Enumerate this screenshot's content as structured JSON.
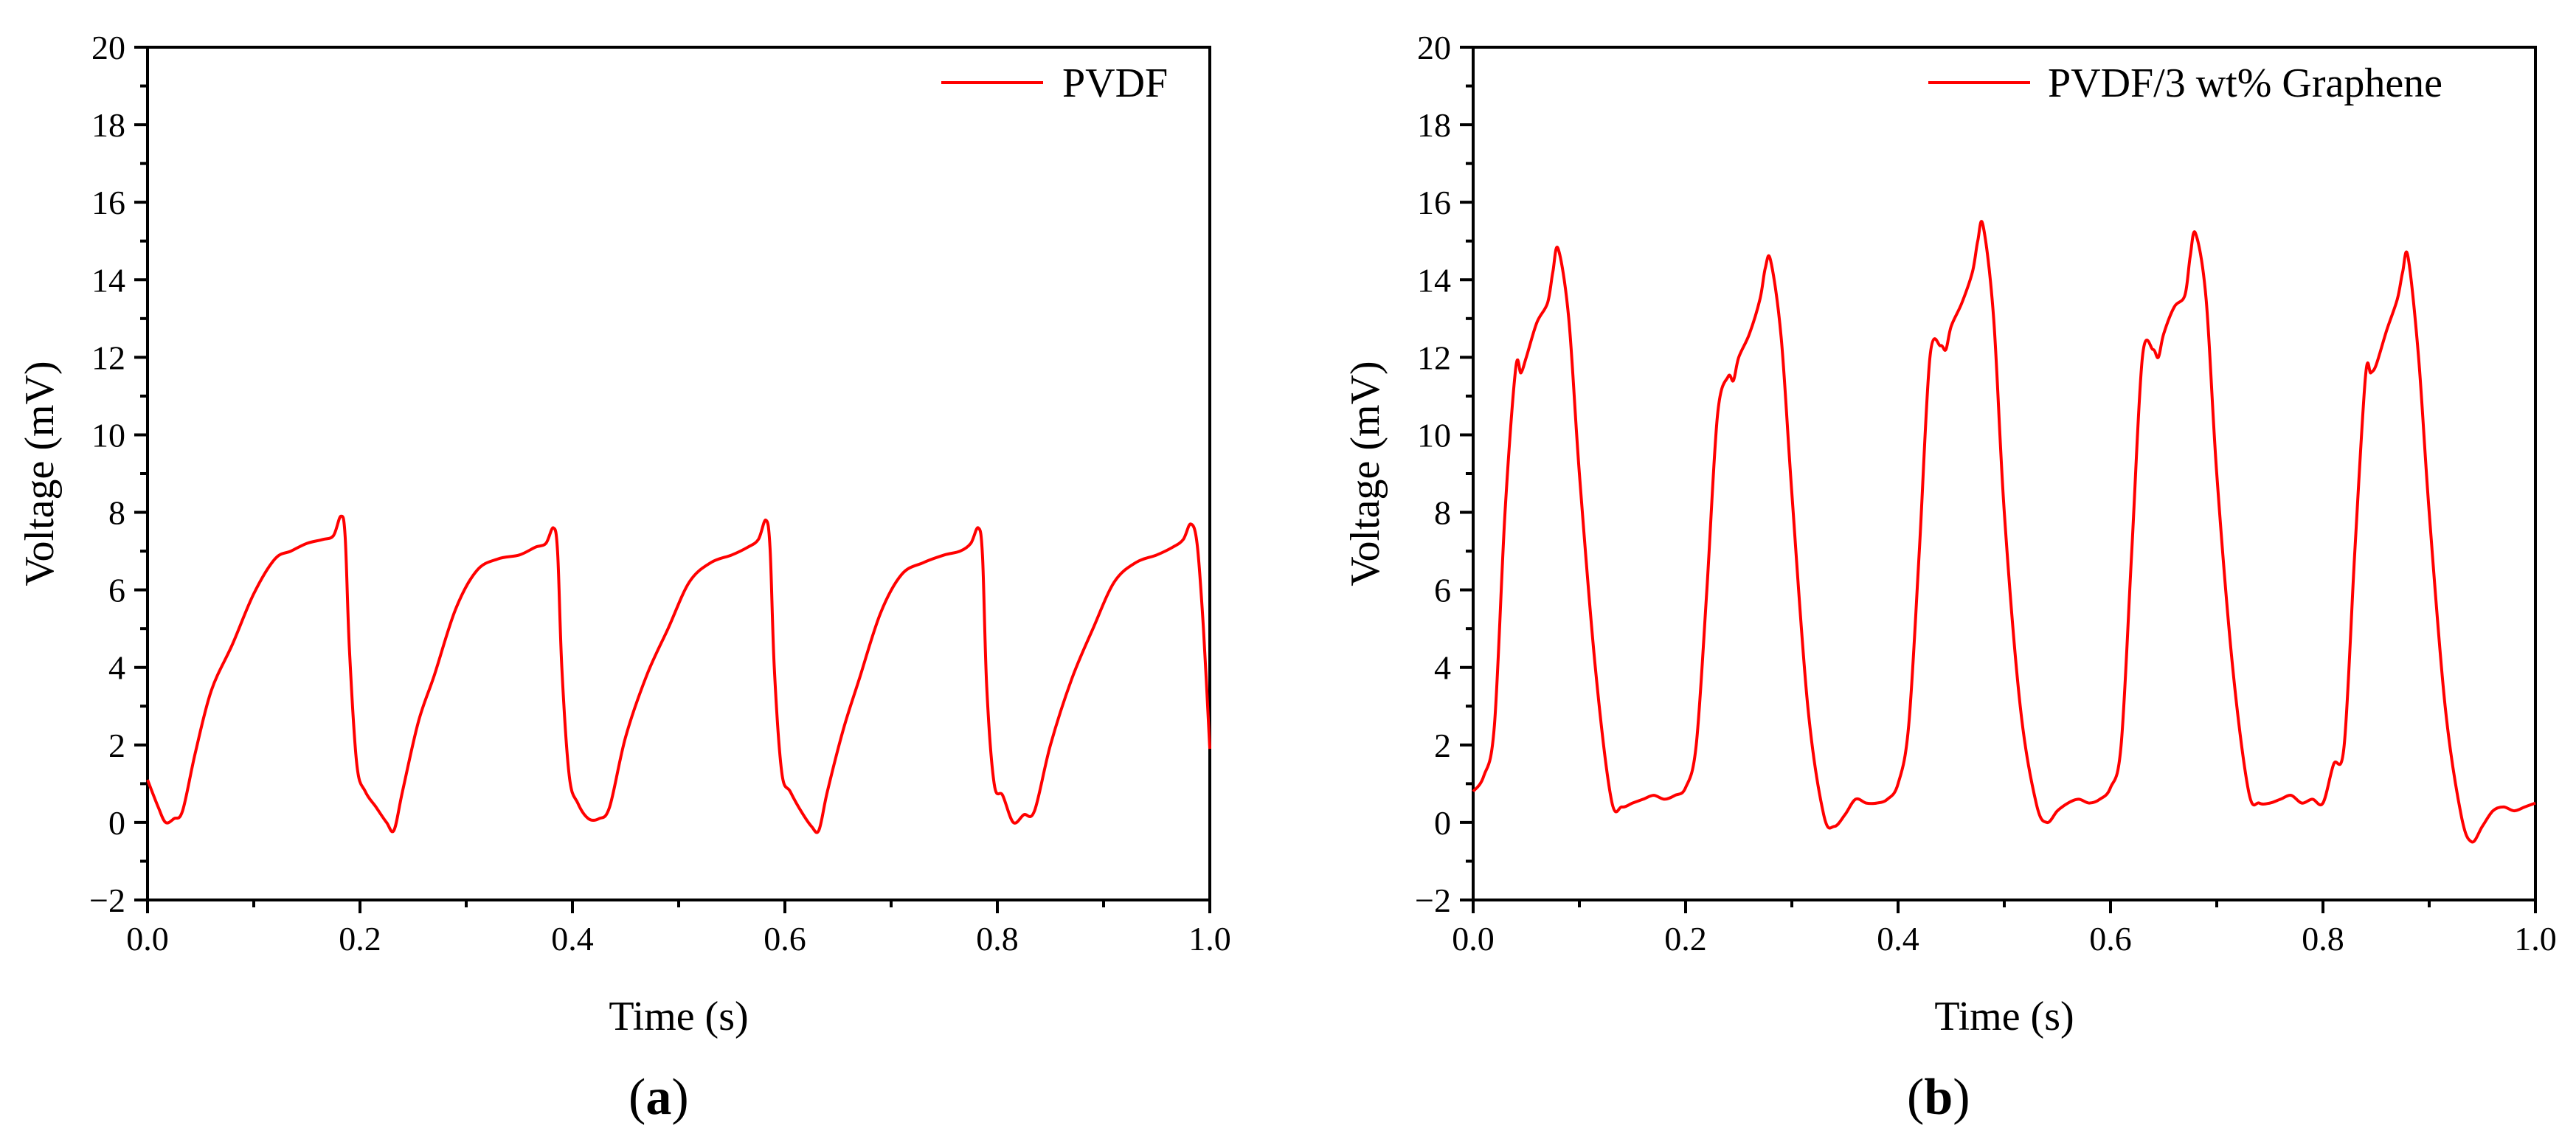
{
  "colors": {
    "series": "#ff0000",
    "axis": "#000000",
    "background": "#ffffff"
  },
  "chart_data": [
    {
      "type": "line",
      "panel_label": "a",
      "legend": "PVDF",
      "legend_position": "top-right",
      "xlabel": "Time (s)",
      "ylabel": "Voltage (mV)",
      "xlim": [
        0,
        1
      ],
      "ylim": [
        -2,
        20
      ],
      "xticks": [
        "0.0",
        "0.2",
        "0.4",
        "0.6",
        "0.8",
        "1.0"
      ],
      "yticks": [
        "−2",
        "0",
        "2",
        "4",
        "6",
        "8",
        "10",
        "12",
        "14",
        "16",
        "18",
        "20"
      ],
      "grid": false,
      "series": [
        {
          "name": "PVDF",
          "x": [
            0.0,
            0.01,
            0.017,
            0.025,
            0.033,
            0.045,
            0.06,
            0.08,
            0.1,
            0.12,
            0.135,
            0.15,
            0.165,
            0.175,
            0.182,
            0.186,
            0.19,
            0.197,
            0.205,
            0.215,
            0.225,
            0.232,
            0.24,
            0.255,
            0.27,
            0.29,
            0.31,
            0.33,
            0.35,
            0.365,
            0.375,
            0.382,
            0.386,
            0.39,
            0.397,
            0.405,
            0.415,
            0.425,
            0.435,
            0.45,
            0.47,
            0.49,
            0.51,
            0.53,
            0.55,
            0.565,
            0.575,
            0.582,
            0.586,
            0.59,
            0.597,
            0.605,
            0.615,
            0.625,
            0.632,
            0.64,
            0.655,
            0.67,
            0.69,
            0.71,
            0.73,
            0.75,
            0.765,
            0.775,
            0.782,
            0.786,
            0.79,
            0.797,
            0.805,
            0.815,
            0.825,
            0.835,
            0.85,
            0.87,
            0.89,
            0.91,
            0.93,
            0.95,
            0.965,
            0.975,
            0.982,
            0.988,
            0.994,
            1.0
          ],
          "values": [
            1.1,
            0.4,
            0.0,
            0.1,
            0.3,
            1.8,
            3.4,
            4.6,
            5.9,
            6.8,
            7.0,
            7.2,
            7.3,
            7.4,
            7.9,
            7.4,
            4.5,
            1.5,
            0.8,
            0.4,
            0.0,
            -0.2,
            0.8,
            2.6,
            3.8,
            5.5,
            6.5,
            6.8,
            6.9,
            7.1,
            7.2,
            7.6,
            7.0,
            4.0,
            1.2,
            0.5,
            0.1,
            0.1,
            0.4,
            2.2,
            3.8,
            5.0,
            6.2,
            6.7,
            6.9,
            7.1,
            7.3,
            7.8,
            7.1,
            4.0,
            1.3,
            0.8,
            0.3,
            -0.1,
            -0.2,
            0.8,
            2.4,
            3.7,
            5.4,
            6.4,
            6.7,
            6.9,
            7.0,
            7.2,
            7.6,
            6.9,
            3.5,
            1.0,
            0.7,
            0.0,
            0.2,
            0.3,
            2.0,
            3.7,
            5.0,
            6.2,
            6.7,
            6.9,
            7.1,
            7.3,
            7.7,
            7.2,
            5.0,
            1.9
          ]
        }
      ]
    },
    {
      "type": "line",
      "panel_label": "b",
      "legend": "PVDF/3 wt% Graphene",
      "legend_position": "top-right",
      "xlabel": "Time (s)",
      "ylabel": "Voltage (mV)",
      "xlim": [
        0,
        1
      ],
      "ylim": [
        -2,
        20
      ],
      "xticks": [
        "0.0",
        "0.2",
        "0.4",
        "0.6",
        "0.8",
        "1.0"
      ],
      "yticks": [
        "−2",
        "0",
        "2",
        "4",
        "6",
        "8",
        "10",
        "12",
        "14",
        "16",
        "18",
        "20"
      ],
      "grid": false,
      "series": [
        {
          "name": "PVDF/3 wt% Graphene",
          "x": [
            0.0,
            0.01,
            0.02,
            0.03,
            0.04,
            0.045,
            0.05,
            0.06,
            0.07,
            0.075,
            0.08,
            0.09,
            0.1,
            0.115,
            0.13,
            0.14,
            0.15,
            0.16,
            0.17,
            0.18,
            0.19,
            0.2,
            0.21,
            0.22,
            0.23,
            0.24,
            0.245,
            0.25,
            0.26,
            0.27,
            0.275,
            0.28,
            0.29,
            0.3,
            0.315,
            0.33,
            0.34,
            0.35,
            0.36,
            0.37,
            0.38,
            0.39,
            0.4,
            0.41,
            0.42,
            0.43,
            0.44,
            0.445,
            0.45,
            0.46,
            0.47,
            0.475,
            0.48,
            0.49,
            0.5,
            0.515,
            0.53,
            0.54,
            0.55,
            0.56,
            0.57,
            0.58,
            0.59,
            0.6,
            0.61,
            0.62,
            0.63,
            0.64,
            0.645,
            0.65,
            0.66,
            0.67,
            0.675,
            0.68,
            0.69,
            0.7,
            0.715,
            0.73,
            0.74,
            0.75,
            0.76,
            0.77,
            0.78,
            0.79,
            0.8,
            0.81,
            0.82,
            0.83,
            0.84,
            0.845,
            0.85,
            0.86,
            0.87,
            0.875,
            0.88,
            0.89,
            0.9,
            0.915,
            0.93,
            0.94,
            0.95,
            0.96,
            0.97,
            0.98,
            0.99,
            1.0
          ],
          "values": [
            0.8,
            1.2,
            2.5,
            8.0,
            11.7,
            11.6,
            12.0,
            12.9,
            13.4,
            14.2,
            14.8,
            13.0,
            9.0,
            4.0,
            0.6,
            0.4,
            0.5,
            0.6,
            0.7,
            0.6,
            0.7,
            0.9,
            2.0,
            6.0,
            10.5,
            11.5,
            11.4,
            12.0,
            12.6,
            13.5,
            14.3,
            14.5,
            12.5,
            8.5,
            3.0,
            0.2,
            -0.1,
            0.2,
            0.6,
            0.5,
            0.5,
            0.6,
            1.0,
            2.5,
            7.0,
            12.0,
            12.3,
            12.2,
            12.8,
            13.4,
            14.2,
            15.0,
            15.4,
            13.0,
            8.0,
            3.0,
            0.5,
            0.0,
            0.3,
            0.5,
            0.6,
            0.5,
            0.6,
            0.9,
            2.0,
            7.0,
            12.0,
            12.2,
            12.0,
            12.6,
            13.3,
            13.6,
            14.6,
            15.2,
            13.5,
            9.0,
            4.0,
            0.8,
            0.5,
            0.5,
            0.6,
            0.7,
            0.5,
            0.6,
            0.5,
            1.5,
            2.0,
            7.0,
            11.5,
            11.6,
            11.8,
            12.7,
            13.5,
            14.2,
            14.6,
            12.0,
            8.0,
            3.0,
            0.2,
            -0.5,
            -0.1,
            0.3,
            0.4,
            0.3,
            0.4,
            0.5
          ]
        }
      ]
    }
  ]
}
